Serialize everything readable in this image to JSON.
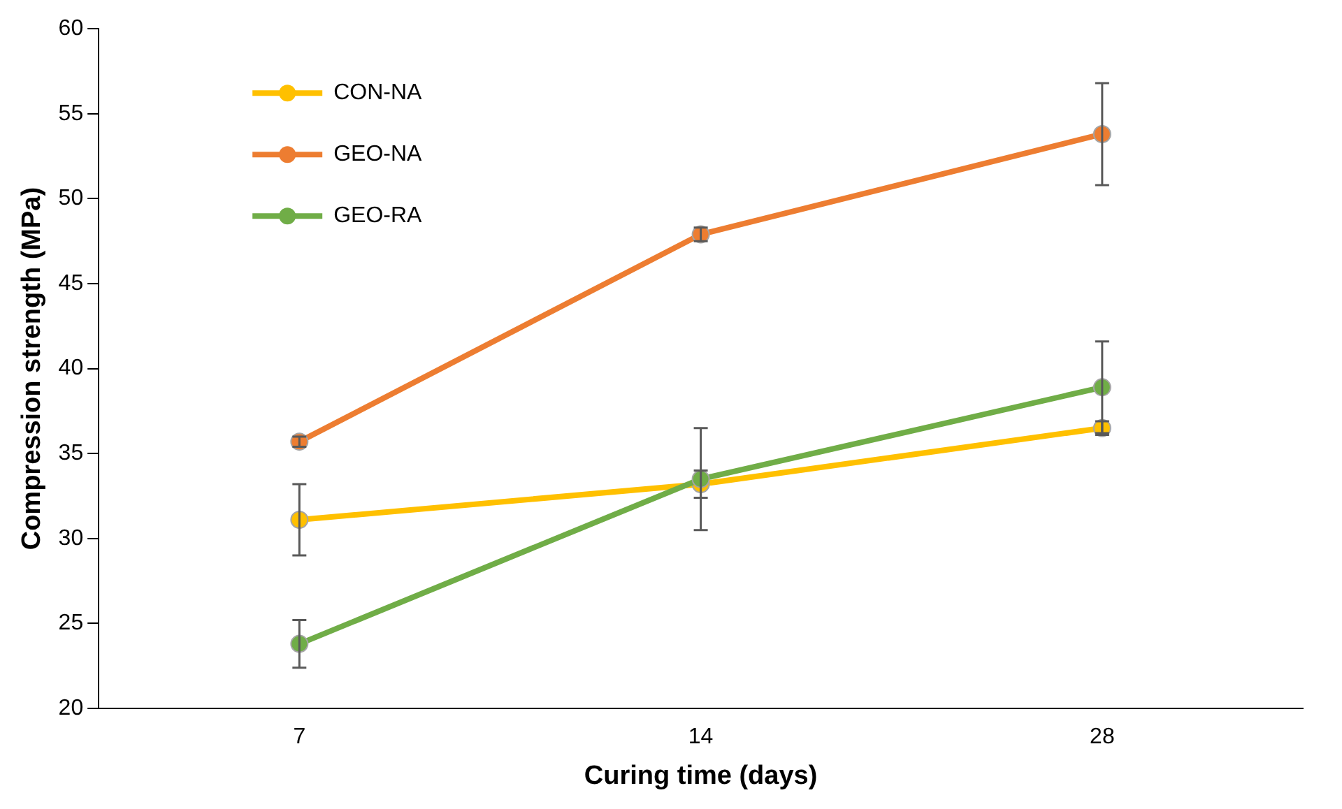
{
  "chart_data": {
    "type": "line",
    "xlabel": "Curing time (days)",
    "ylabel": "Compression strength (MPa)",
    "categories": [
      "7",
      "14",
      "28"
    ],
    "ylim": [
      20,
      60
    ],
    "yticks": [
      20,
      25,
      30,
      35,
      40,
      45,
      50,
      55,
      60
    ],
    "grid": false,
    "legend": "top left",
    "marker": "circle",
    "line_style": "solid",
    "series": [
      {
        "name": "CON-NA",
        "color": "#ffc000",
        "values": [
          31.1,
          33.2,
          36.5
        ],
        "errors": [
          2.1,
          0.8,
          0.4
        ]
      },
      {
        "name": "GEO-NA",
        "color": "#ed7d31",
        "values": [
          35.7,
          47.9,
          53.8
        ],
        "errors": [
          0.3,
          0.4,
          3.0
        ]
      },
      {
        "name": "GEO-RA",
        "color": "#70ad47",
        "values": [
          23.8,
          33.5,
          38.9
        ],
        "errors": [
          1.4,
          3.0,
          2.7
        ]
      }
    ]
  }
}
